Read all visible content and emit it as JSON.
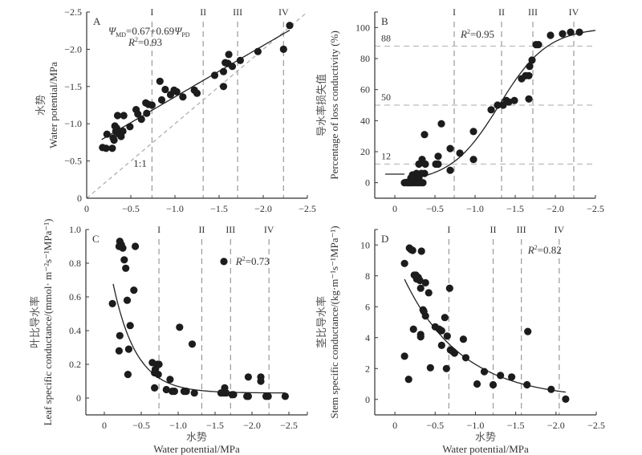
{
  "chart_data": [
    {
      "id": "A",
      "type": "scatter",
      "panel_label": "A",
      "xlabel": "",
      "ylabel_cn": "水势",
      "ylabel_en": "Water potential/MPa",
      "xlim": [
        0,
        -2.5
      ],
      "ylim": [
        0,
        -2.5
      ],
      "xticks": [
        0,
        -0.5,
        -1.0,
        -1.5,
        -2.0,
        -2.5
      ],
      "xtick_labels": [
        "0",
        "−0.5",
        "−1.0",
        "−1.5",
        "−2.0",
        "−2.5"
      ],
      "yticks": [
        0,
        -0.5,
        -1.0,
        -1.5,
        -2.0,
        -2.5
      ],
      "ytick_labels": [
        "0",
        "−0.5",
        "−1.0",
        "−1.5",
        "−2.0",
        "−2.5"
      ],
      "stage_lines": [
        {
          "label": "I",
          "x": -0.74
        },
        {
          "label": "II",
          "x": -1.32
        },
        {
          "label": "III",
          "x": -1.71
        },
        {
          "label": "IV",
          "x": -2.23
        }
      ],
      "reference_line": {
        "label": "1:1",
        "slope": 1,
        "intercept": 0
      },
      "fit": {
        "type": "linear",
        "intercept": -0.67,
        "slope": 0.69,
        "x_range": [
          -0.17,
          -2.3
        ]
      },
      "equation_text": {
        "psi": "Ψ",
        "sub1": "MD",
        "mid": "=0.67+0.69",
        "sub2": "PD"
      },
      "r2_text": "=0.93",
      "points": [
        [
          -0.18,
          -0.68
        ],
        [
          -0.22,
          -0.67
        ],
        [
          -0.29,
          -0.67
        ],
        [
          -0.23,
          -0.86
        ],
        [
          -0.3,
          -0.81
        ],
        [
          -0.32,
          -0.97
        ],
        [
          -0.35,
          -1.11
        ],
        [
          -0.42,
          -1.11
        ],
        [
          -0.33,
          -0.9
        ],
        [
          -0.37,
          -0.86
        ],
        [
          -0.39,
          -0.83
        ],
        [
          -0.41,
          -0.9
        ],
        [
          -0.31,
          -0.78
        ],
        [
          -0.34,
          -0.94
        ],
        [
          -0.36,
          -0.88
        ],
        [
          -0.49,
          -0.96
        ],
        [
          -0.56,
          -1.19
        ],
        [
          -0.58,
          -1.13
        ],
        [
          -0.62,
          -1.06
        ],
        [
          -0.67,
          -1.28
        ],
        [
          -0.7,
          -1.26
        ],
        [
          -0.74,
          -1.25
        ],
        [
          -0.68,
          -1.14
        ],
        [
          -0.83,
          -1.57
        ],
        [
          -0.85,
          -1.32
        ],
        [
          -0.89,
          -1.46
        ],
        [
          -0.95,
          -1.39
        ],
        [
          -0.99,
          -1.45
        ],
        [
          -1.02,
          -1.43
        ],
        [
          -1.09,
          -1.36
        ],
        [
          -1.22,
          -1.45
        ],
        [
          -1.25,
          -1.41
        ],
        [
          -1.45,
          -1.65
        ],
        [
          -1.55,
          -1.7
        ],
        [
          -1.55,
          -1.5
        ],
        [
          -1.57,
          -1.82
        ],
        [
          -1.6,
          -1.81
        ],
        [
          -1.61,
          -1.93
        ],
        [
          -1.65,
          -1.77
        ],
        [
          -1.74,
          -1.85
        ],
        [
          -1.94,
          -1.97
        ],
        [
          -2.23,
          -2.0
        ],
        [
          -2.3,
          -2.32
        ]
      ]
    },
    {
      "id": "B",
      "type": "scatter",
      "panel_label": "B",
      "ylabel_cn": "导水率损失值",
      "ylabel_en": "Percentage of loss conductivity (%)",
      "xlim": [
        0.25,
        -2.5
      ],
      "ylim": [
        -10,
        110
      ],
      "xticks": [
        0,
        -0.5,
        -1.0,
        -1.5,
        -2.0,
        -2.5
      ],
      "xtick_labels": [
        "0",
        "−0.5",
        "−1.0",
        "−1.5",
        "−2.0",
        "−2.5"
      ],
      "yticks": [
        0,
        20,
        40,
        60,
        80,
        100
      ],
      "ytick_labels": [
        "0",
        "20",
        "40",
        "60",
        "80",
        "100"
      ],
      "stage_lines": [
        {
          "label": "I",
          "x": -0.74
        },
        {
          "label": "II",
          "x": -1.33
        },
        {
          "label": "III",
          "x": -1.72
        },
        {
          "label": "IV",
          "x": -2.23
        }
      ],
      "threshold_lines": [
        {
          "label": "88",
          "y": 88
        },
        {
          "label": "50",
          "y": 50
        },
        {
          "label": "12",
          "y": 12
        }
      ],
      "fit": {
        "type": "sigmoid",
        "P50": -1.3,
        "slope": 3.3,
        "x_range": [
          -0.12,
          -2.5
        ]
      },
      "r2_text": "=0.95",
      "points": [
        [
          -0.12,
          0
        ],
        [
          -0.15,
          0
        ],
        [
          -0.18,
          0
        ],
        [
          -0.2,
          0
        ],
        [
          -0.22,
          0
        ],
        [
          -0.25,
          0
        ],
        [
          -0.28,
          0
        ],
        [
          -0.3,
          0
        ],
        [
          -0.33,
          0
        ],
        [
          -0.35,
          0
        ],
        [
          -0.2,
          3
        ],
        [
          -0.24,
          4
        ],
        [
          -0.27,
          6
        ],
        [
          -0.3,
          3
        ],
        [
          -0.33,
          6
        ],
        [
          -0.22,
          5
        ],
        [
          -0.37,
          31
        ],
        [
          -0.58,
          38
        ],
        [
          -0.54,
          17
        ],
        [
          -0.34,
          15
        ],
        [
          -0.3,
          12
        ],
        [
          -0.38,
          12
        ],
        [
          -0.51,
          12
        ],
        [
          -0.54,
          12
        ],
        [
          -0.37,
          6
        ],
        [
          -0.69,
          22
        ],
        [
          -0.69,
          8
        ],
        [
          -0.81,
          19
        ],
        [
          -0.98,
          33
        ],
        [
          -0.98,
          15
        ],
        [
          -1.2,
          47
        ],
        [
          -1.28,
          50
        ],
        [
          -1.35,
          50
        ],
        [
          -1.39,
          53
        ],
        [
          -1.42,
          52
        ],
        [
          -1.49,
          53
        ],
        [
          -1.58,
          67
        ],
        [
          -1.63,
          69
        ],
        [
          -1.67,
          69
        ],
        [
          -1.67,
          54
        ],
        [
          -1.68,
          75
        ],
        [
          -1.71,
          79
        ],
        [
          -1.76,
          89
        ],
        [
          -1.79,
          89
        ],
        [
          -1.94,
          95
        ],
        [
          -2.09,
          96
        ],
        [
          -2.19,
          97
        ],
        [
          -2.3,
          97
        ]
      ]
    },
    {
      "id": "C",
      "type": "scatter",
      "panel_label": "C",
      "xlabel_cn": "水势",
      "xlabel_en": "Water potential/MPa",
      "ylabel_cn": "叶比导水率",
      "ylabel_en": "Leaf specific conductance/(mmol· m⁻²s⁻¹MPa⁻¹)",
      "xlim": [
        0.25,
        -2.75
      ],
      "ylim": [
        -0.1,
        1.0
      ],
      "xticks": [
        0,
        -0.5,
        -1.0,
        -1.5,
        -2.0,
        -2.5
      ],
      "xtick_labels": [
        "0",
        "−0.5",
        "−1.0",
        "−1.5",
        "−2.0",
        "−2.5"
      ],
      "yticks": [
        0,
        0.2,
        0.4,
        0.6,
        0.8,
        1.0
      ],
      "ytick_labels": [
        "0",
        "0.2",
        "0.4",
        "0.6",
        "0.8",
        "1.0"
      ],
      "stage_lines": [
        {
          "label": "I",
          "x": -0.74
        },
        {
          "label": "II",
          "x": -1.32
        },
        {
          "label": "III",
          "x": -1.71
        },
        {
          "label": "IV",
          "x": -2.23
        }
      ],
      "fit": {
        "type": "exponential",
        "a": 0.03,
        "b": 0.95,
        "k": 3.2,
        "x_range": [
          -0.12,
          -2.45
        ]
      },
      "r2_text": "=0.73",
      "points": [
        [
          -0.11,
          0.56
        ],
        [
          -0.2,
          0.9
        ],
        [
          -0.21,
          0.93
        ],
        [
          -0.23,
          0.91
        ],
        [
          -0.25,
          0.89
        ],
        [
          -0.27,
          0.82
        ],
        [
          -0.29,
          0.77
        ],
        [
          -0.31,
          0.58
        ],
        [
          -0.4,
          0.64
        ],
        [
          -0.42,
          0.9
        ],
        [
          -0.21,
          0.37
        ],
        [
          -0.2,
          0.28
        ],
        [
          -0.33,
          0.29
        ],
        [
          -0.35,
          0.43
        ],
        [
          -0.32,
          0.14
        ],
        [
          -0.65,
          0.21
        ],
        [
          -0.69,
          0.17
        ],
        [
          -0.68,
          0.15
        ],
        [
          -0.72,
          0.2
        ],
        [
          -0.74,
          0.2
        ],
        [
          -0.73,
          0.14
        ],
        [
          -0.68,
          0.06
        ],
        [
          -0.84,
          0.05
        ],
        [
          -0.89,
          0.11
        ],
        [
          -0.92,
          0.04
        ],
        [
          -0.95,
          0.04
        ],
        [
          -1.02,
          0.42
        ],
        [
          -1.08,
          0.04
        ],
        [
          -1.11,
          0.04
        ],
        [
          -1.19,
          0.32
        ],
        [
          -1.22,
          0.03
        ],
        [
          -1.58,
          0.03
        ],
        [
          -1.62,
          0.81
        ],
        [
          -1.63,
          0.06
        ],
        [
          -1.62,
          0.03
        ],
        [
          -1.65,
          0.03
        ],
        [
          -1.73,
          0.02
        ],
        [
          -1.75,
          0.02
        ],
        [
          -1.93,
          0.01
        ],
        [
          -1.95,
          0.125
        ],
        [
          -1.95,
          0.01
        ],
        [
          -2.12,
          0.125
        ],
        [
          -2.12,
          0.1
        ],
        [
          -2.19,
          0.01
        ],
        [
          -2.22,
          0.01
        ],
        [
          -2.45,
          0.01
        ]
      ]
    },
    {
      "id": "D",
      "type": "scatter",
      "panel_label": "D",
      "xlabel_cn": "水势",
      "xlabel_en": "Water potential/MPa",
      "ylabel_cn": "茎比导水率",
      "ylabel_en": "Stem specific conductance/(kg·m⁻¹s⁻¹MPa⁻¹)",
      "xlim": [
        0.25,
        -2.5
      ],
      "ylim": [
        -1,
        11
      ],
      "xticks": [
        0,
        -0.5,
        -1.0,
        -1.5,
        -2.0,
        -2.5
      ],
      "xtick_labels": [
        "0",
        "−0.5",
        "−1.0",
        "−1.5",
        "−2.0",
        "−2.5"
      ],
      "yticks": [
        0,
        2,
        4,
        6,
        8,
        10
      ],
      "ytick_labels": [
        "0",
        "2",
        "4",
        "6",
        "8",
        "10"
      ],
      "stage_lines": [
        {
          "label": "I",
          "x": -0.67
        },
        {
          "label": "II",
          "x": -1.22
        },
        {
          "label": "III",
          "x": -1.57
        },
        {
          "label": "IV",
          "x": -2.04
        }
      ],
      "fit": {
        "type": "exponential",
        "a": 0.0,
        "b": 9.2,
        "k": 1.4,
        "x_range": [
          -0.12,
          -2.12
        ]
      },
      "r2_text": "=0.82",
      "points": [
        [
          -0.12,
          8.8
        ],
        [
          -0.18,
          9.8
        ],
        [
          -0.2,
          9.7
        ],
        [
          -0.22,
          9.65
        ],
        [
          -0.33,
          9.6
        ],
        [
          -0.24,
          8.05
        ],
        [
          -0.26,
          8.05
        ],
        [
          -0.27,
          7.8
        ],
        [
          -0.29,
          7.9
        ],
        [
          -0.31,
          7.7
        ],
        [
          -0.32,
          7.2
        ],
        [
          -0.38,
          7.55
        ],
        [
          -0.42,
          6.9
        ],
        [
          -0.35,
          5.8
        ],
        [
          -0.36,
          5.7
        ],
        [
          -0.38,
          5.4
        ],
        [
          -0.68,
          7.2
        ],
        [
          -0.62,
          5.3
        ],
        [
          -0.23,
          4.55
        ],
        [
          -0.32,
          4.2
        ],
        [
          -0.32,
          4.05
        ],
        [
          -0.5,
          4.7
        ],
        [
          -0.55,
          4.55
        ],
        [
          -0.58,
          4.45
        ],
        [
          -0.65,
          4.1
        ],
        [
          -0.58,
          3.5
        ],
        [
          -0.69,
          3.2
        ],
        [
          -0.72,
          3.1
        ],
        [
          -0.74,
          3.0
        ],
        [
          -0.85,
          3.9
        ],
        [
          -0.88,
          2.7
        ],
        [
          -0.12,
          2.8
        ],
        [
          -0.17,
          1.3
        ],
        [
          -0.44,
          2.05
        ],
        [
          -0.64,
          2.0
        ],
        [
          -1.02,
          1.0
        ],
        [
          -1.11,
          1.8
        ],
        [
          -1.22,
          0.95
        ],
        [
          -1.31,
          1.55
        ],
        [
          -1.45,
          1.45
        ],
        [
          -1.64,
          0.95
        ],
        [
          -1.65,
          4.4
        ],
        [
          -1.94,
          0.65
        ],
        [
          -2.12,
          0.02
        ]
      ]
    }
  ]
}
